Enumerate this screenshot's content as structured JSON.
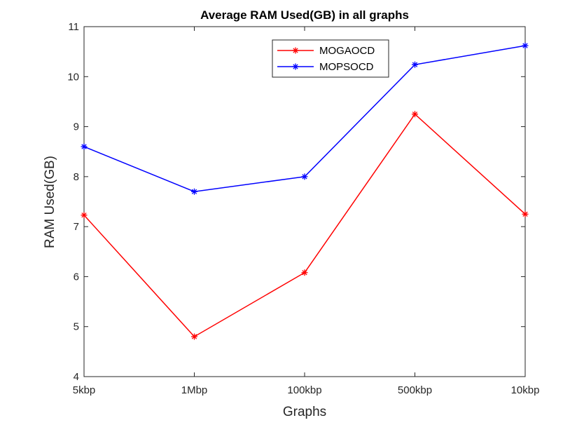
{
  "chart_data": {
    "type": "line",
    "title": "Average RAM Used(GB) in all graphs",
    "xlabel": "Graphs",
    "ylabel": "RAM Used(GB)",
    "categories": [
      "5kbp",
      "1Mbp",
      "100kbp",
      "500kbp",
      "10kbp"
    ],
    "ylim": [
      4,
      11
    ],
    "yticks": [
      "4",
      "5",
      "6",
      "7",
      "8",
      "9",
      "10",
      "11"
    ],
    "grid": false,
    "legend_position": "top-center",
    "series": [
      {
        "name": "MOGAOCD",
        "color": "#ff0000",
        "marker": "asterisk",
        "values": [
          7.23,
          4.8,
          6.08,
          9.25,
          7.25
        ]
      },
      {
        "name": "MOPSOCD",
        "color": "#0000ff",
        "marker": "asterisk",
        "values": [
          8.6,
          7.7,
          8.0,
          10.24,
          10.62
        ]
      }
    ]
  }
}
